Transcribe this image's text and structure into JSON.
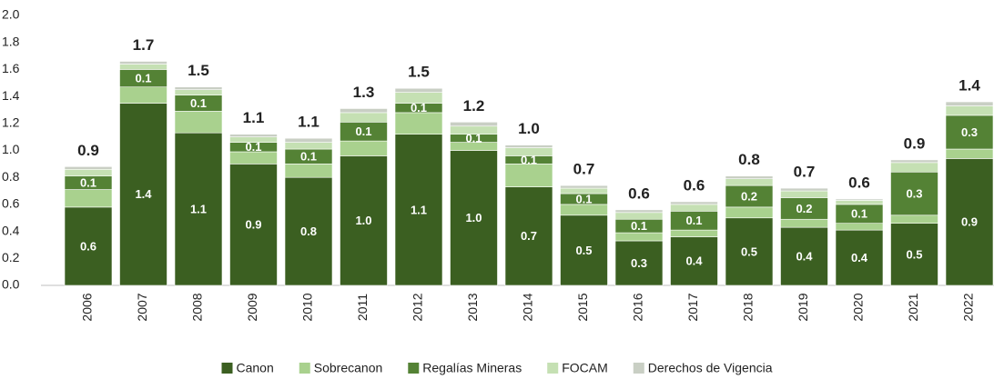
{
  "chart_data": {
    "type": "stacked_bar",
    "categories": [
      "2006",
      "2007",
      "2008",
      "2009",
      "2010",
      "2011",
      "2012",
      "2013",
      "2014",
      "2015",
      "2016",
      "2017",
      "2018",
      "2019",
      "2020",
      "2021",
      "2022"
    ],
    "series": [
      {
        "name": "Canon",
        "color": "#3b5f21",
        "values": [
          0.58,
          1.35,
          1.13,
          0.9,
          0.8,
          0.96,
          1.12,
          1.0,
          0.73,
          0.52,
          0.33,
          0.36,
          0.5,
          0.43,
          0.41,
          0.46,
          0.94
        ],
        "value_labels": [
          "0.6",
          "1.4",
          "1.1",
          "0.9",
          "0.8",
          "1.0",
          "1.1",
          "1.0",
          "0.7",
          "0.5",
          "0.3",
          "0.4",
          "0.5",
          "0.4",
          "0.4",
          "0.5",
          "0.9"
        ]
      },
      {
        "name": "Sobrecanon",
        "color": "#a9d18e",
        "values": [
          0.13,
          0.12,
          0.16,
          0.09,
          0.1,
          0.11,
          0.16,
          0.06,
          0.17,
          0.08,
          0.06,
          0.05,
          0.08,
          0.06,
          0.05,
          0.06,
          0.07
        ]
      },
      {
        "name": "Regalías Mineras",
        "color": "#548235",
        "values": [
          0.1,
          0.13,
          0.12,
          0.07,
          0.11,
          0.14,
          0.07,
          0.06,
          0.06,
          0.08,
          0.1,
          0.14,
          0.16,
          0.16,
          0.14,
          0.32,
          0.25
        ],
        "value_labels": [
          "0.1",
          "0.1",
          "0.1",
          "0.1",
          "0.1",
          "0.1",
          "0.1",
          "0.1",
          "0.1",
          "0.1",
          "0.1",
          "0.1",
          "0.2",
          "0.2",
          "0.1",
          "0.3",
          "0.3"
        ]
      },
      {
        "name": "FOCAM",
        "color": "#c5e0b3",
        "values": [
          0.05,
          0.04,
          0.04,
          0.04,
          0.05,
          0.07,
          0.08,
          0.06,
          0.06,
          0.04,
          0.05,
          0.05,
          0.05,
          0.05,
          0.03,
          0.07,
          0.07
        ]
      },
      {
        "name": "Derechos de Vigencia",
        "color": "#c9cfc4",
        "values": [
          0.02,
          0.02,
          0.02,
          0.02,
          0.03,
          0.03,
          0.03,
          0.03,
          0.02,
          0.02,
          0.02,
          0.02,
          0.02,
          0.02,
          0.01,
          0.02,
          0.03
        ]
      }
    ],
    "totals": {
      "values": [
        0.88,
        1.66,
        1.47,
        1.12,
        1.09,
        1.31,
        1.46,
        1.21,
        1.04,
        0.74,
        0.56,
        0.62,
        0.81,
        0.72,
        0.64,
        0.93,
        1.36
      ],
      "value_labels": [
        "0.9",
        "1.7",
        "1.5",
        "1.1",
        "1.1",
        "1.3",
        "1.5",
        "1.2",
        "1.0",
        "0.7",
        "0.6",
        "0.6",
        "0.8",
        "0.7",
        "0.6",
        "0.9",
        "1.4"
      ]
    },
    "ylim": [
      0,
      2.0
    ],
    "yticks": [
      {
        "value": 0,
        "label": "0.0"
      },
      0.2,
      0.4,
      0.6,
      0.8,
      {
        "value": 1,
        "label": "1.0"
      },
      1.2,
      1.4,
      1.6,
      1.8,
      {
        "value": 2,
        "label": "2.0"
      }
    ],
    "legend": "bottom"
  }
}
